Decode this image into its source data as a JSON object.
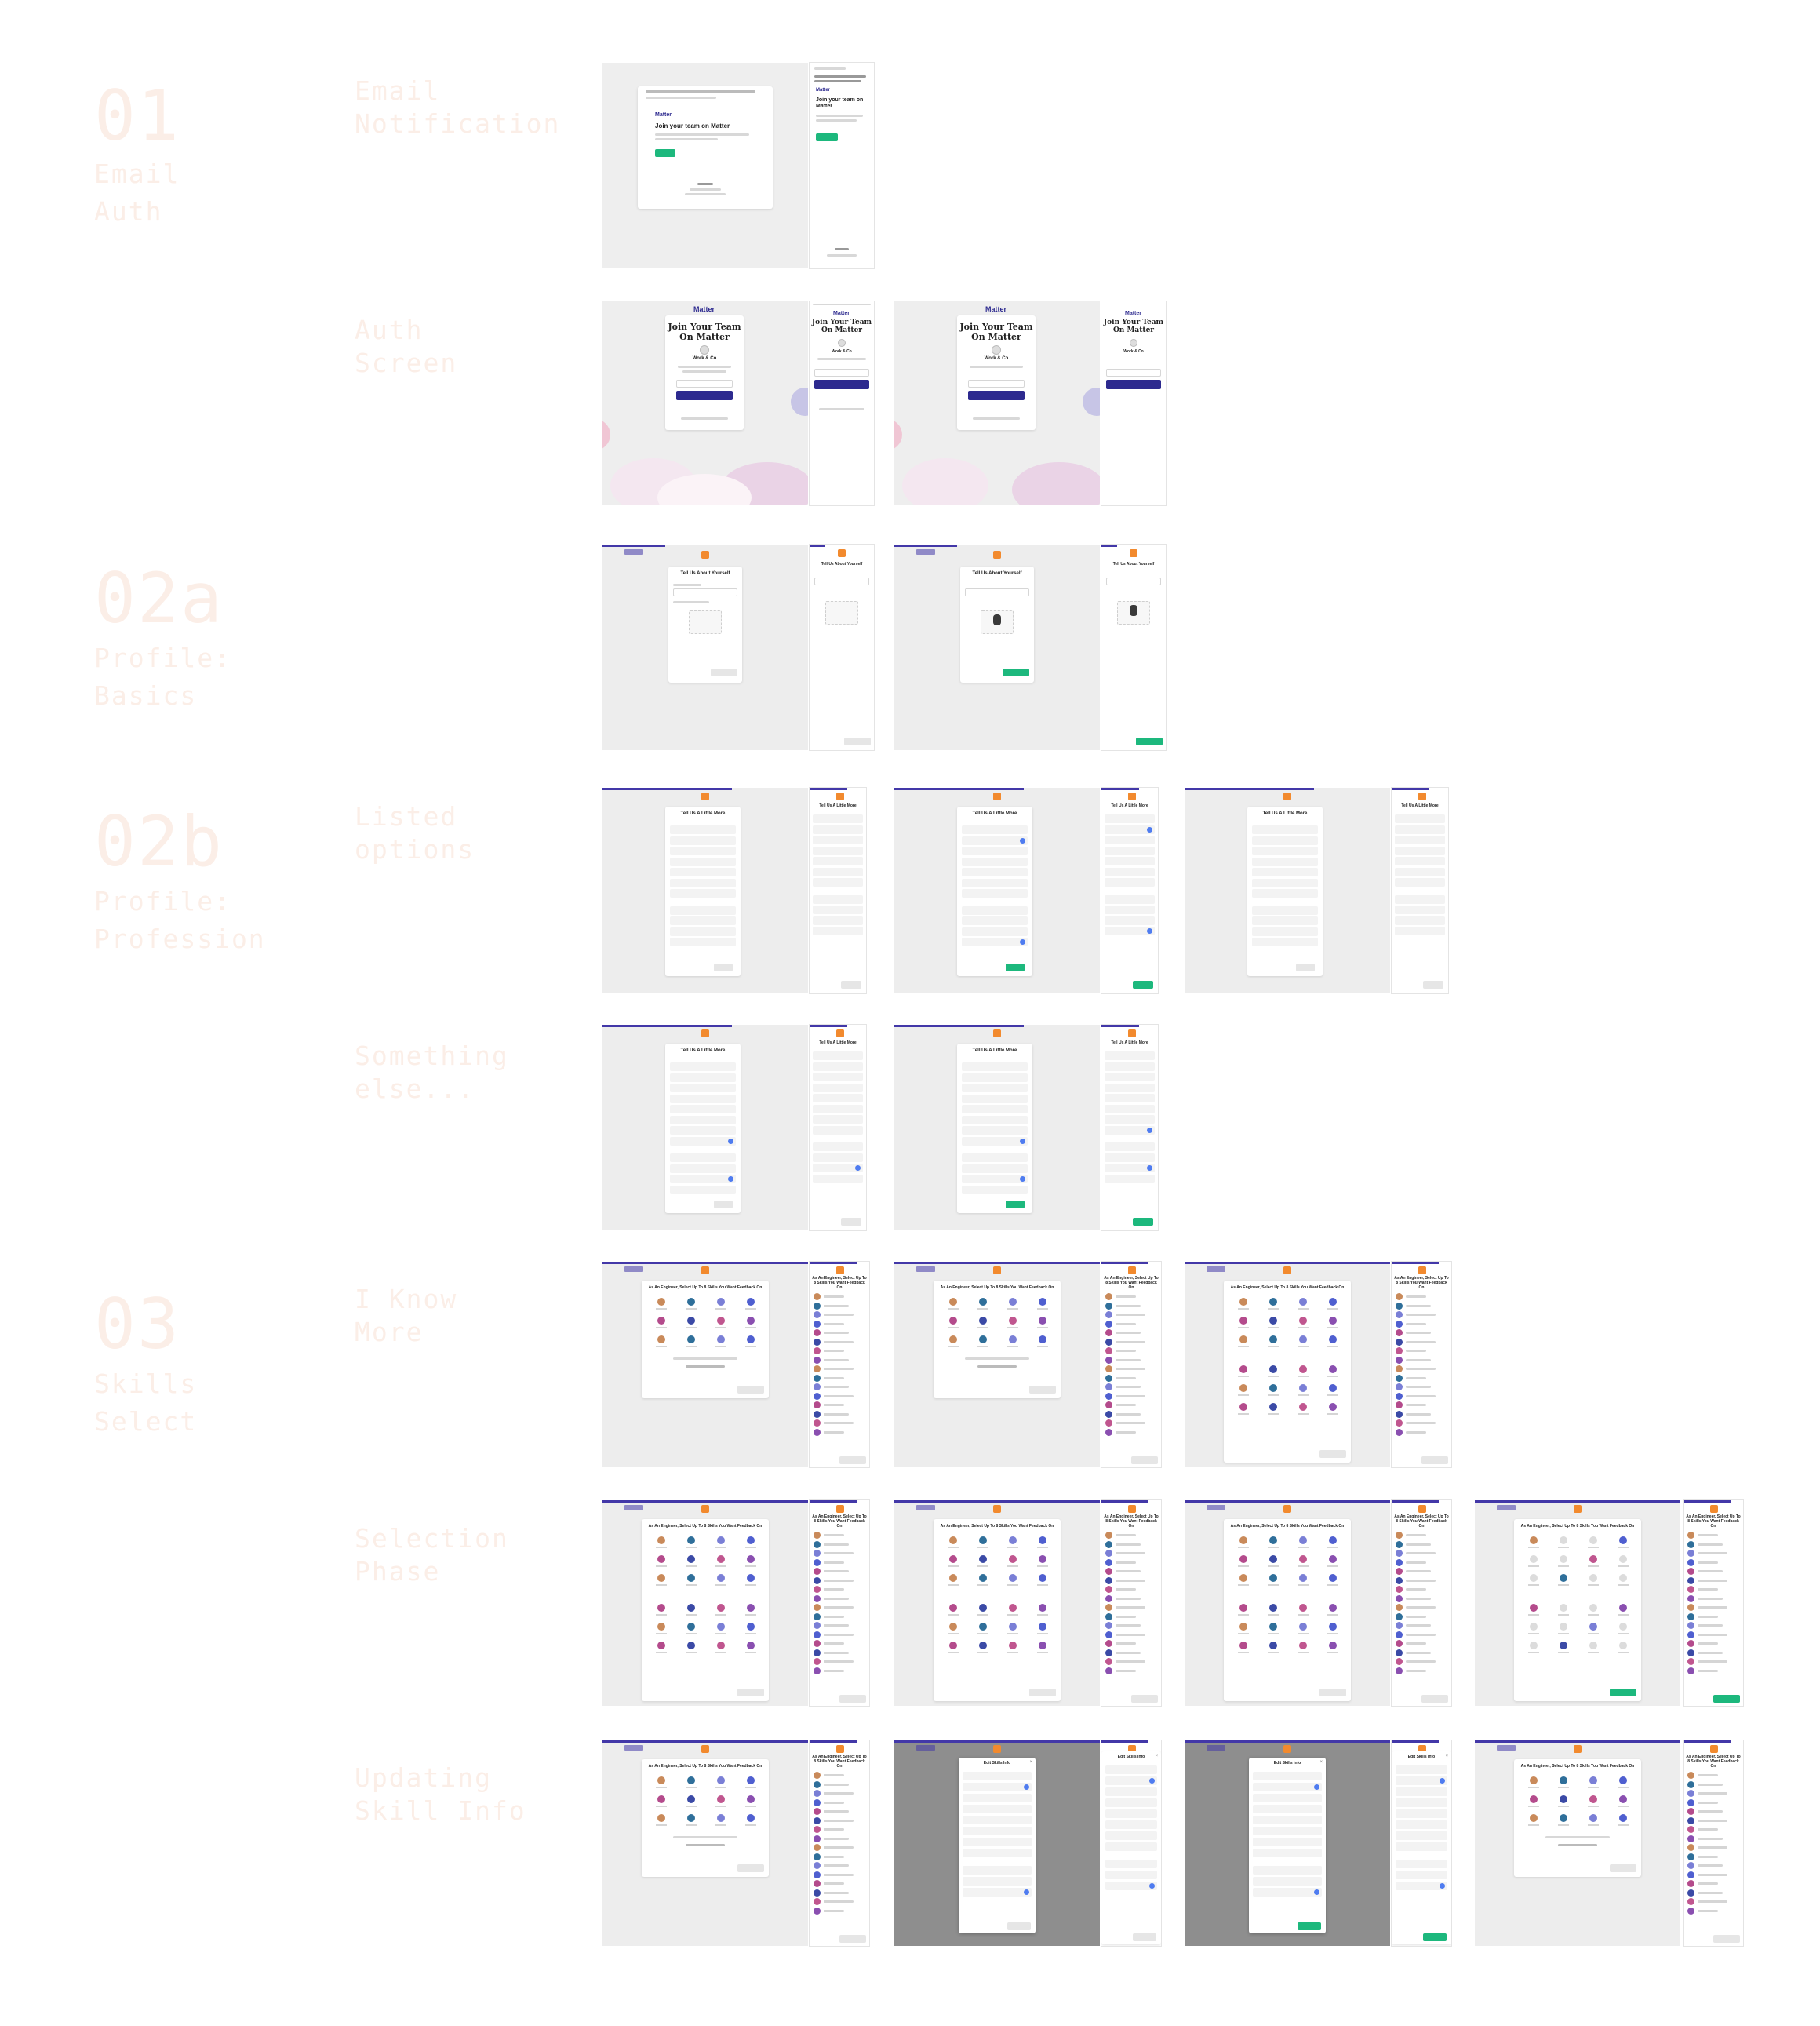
{
  "sections": [
    {
      "number": "01",
      "title": "Email\nAuth"
    },
    {
      "number": "02a",
      "title": "Profile:\nBasics"
    },
    {
      "number": "02b",
      "title": "Profile:\nProfession"
    },
    {
      "number": "03",
      "title": "Skills\nSelect"
    }
  ],
  "row_labels": [
    "Email\nNotification",
    "Auth\nScreen",
    "Listed\noptions",
    "Something\nelse...",
    "I Know\nMore",
    "Selection\nPhase",
    "Updating\nSkill Info"
  ],
  "email": {
    "brand": "Matter",
    "heading": "Join your team on Matter",
    "mobile_heading": "Join your team on Matter"
  },
  "auth": {
    "brand": "Matter",
    "heading": "Join Your Team\nOn Matter",
    "workspace": "Work & Co"
  },
  "profile_basics": {
    "title": "Tell Us About Yourself"
  },
  "profession": {
    "title": "Tell Us A Little More"
  },
  "skills": {
    "title": "As An Engineer, Select Up To 8 Skills You Want Feedback On",
    "mobile_title": "As An Engineer, Select Up To 8 Skills You Want Feedback On"
  },
  "edit_modal": {
    "title": "Edit Skills Info"
  },
  "colors": {
    "accent_navy": "#2d2a8f",
    "accent_green": "#1db87d",
    "accent_orange": "#f28a2e",
    "select_blue": "#4f7cf0",
    "section_text": "#fbeee7"
  }
}
